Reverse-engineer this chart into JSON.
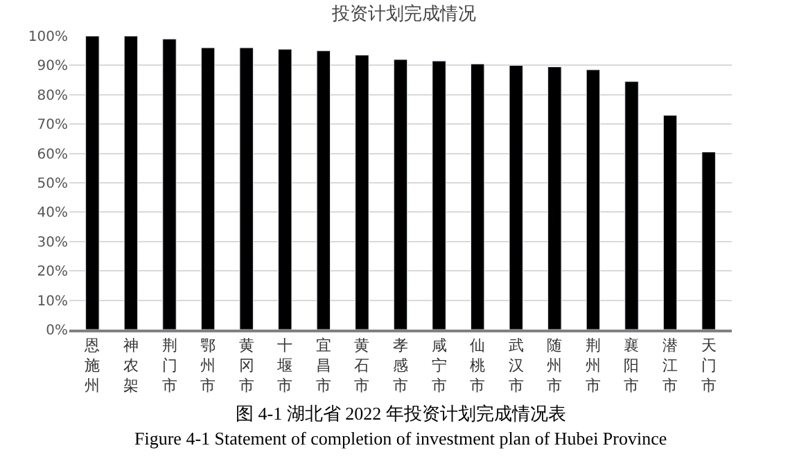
{
  "chart_data": {
    "type": "bar",
    "title": "投资计划完成情况",
    "categories": [
      "恩施州",
      "神农架",
      "荆门市",
      "鄂州市",
      "黄冈市",
      "十堰市",
      "宜昌市",
      "黄石市",
      "孝感市",
      "咸宁市",
      "仙桃市",
      "武汉市",
      "随州市",
      "荆州市",
      "襄阳市",
      "潜江市",
      "天门市"
    ],
    "values": [
      100,
      100,
      99,
      96,
      96,
      95.5,
      95,
      93.5,
      92,
      91.5,
      90.5,
      90,
      89.5,
      88.5,
      84.5,
      73,
      60.5
    ],
    "color": "#000000",
    "ylim": [
      0,
      100
    ],
    "yticks": [
      {
        "value": 0,
        "label": "0%"
      },
      {
        "value": 10,
        "label": "10%"
      },
      {
        "value": 20,
        "label": "20%"
      },
      {
        "value": 30,
        "label": "30%"
      },
      {
        "value": 40,
        "label": "40%"
      },
      {
        "value": 50,
        "label": "50%"
      },
      {
        "value": 60,
        "label": "60%"
      },
      {
        "value": 70,
        "label": "70%"
      },
      {
        "value": 80,
        "label": "80%"
      },
      {
        "value": 90,
        "label": "90%"
      },
      {
        "value": 100,
        "label": "100%"
      }
    ],
    "grid": "y",
    "annotations": [
      "图 4-1 湖北省 2022 年投资计划完成情况表",
      "Figure 4-1 Statement of completion of investment plan of Hubei Province"
    ]
  }
}
